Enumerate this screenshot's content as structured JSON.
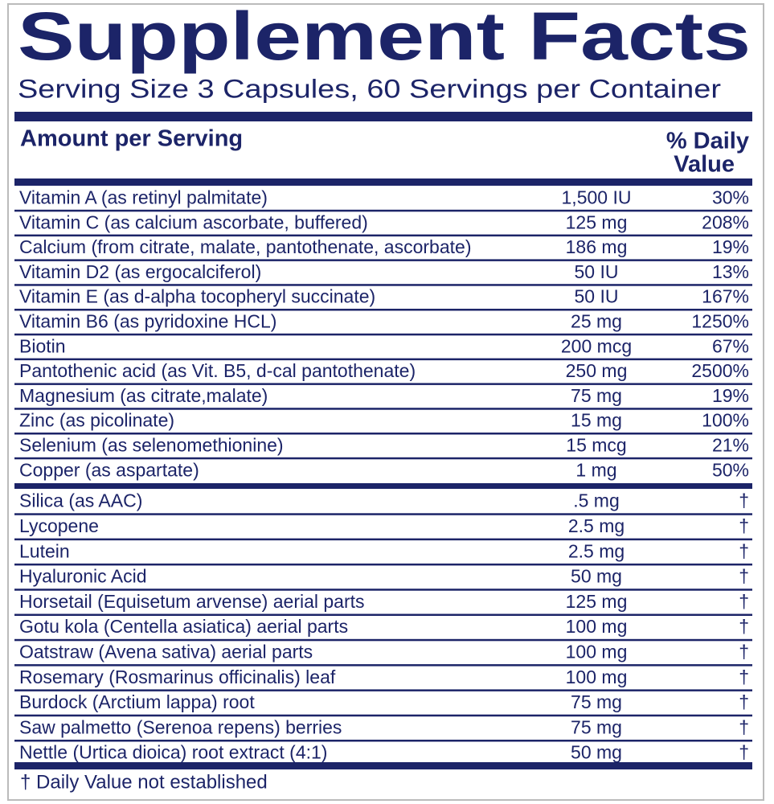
{
  "title": "Supplement Facts",
  "serving_size": "Serving Size 3 Capsules, 60 Servings per Container",
  "header": {
    "amount": "Amount per Serving",
    "daily_value": [
      "% Daily",
      "Value"
    ]
  },
  "groups": [
    [
      [
        "Vitamin A (as retinyl palmitate)",
        "1,500 IU",
        "30%"
      ],
      [
        "Vitamin C (as calcium ascorbate, buffered)",
        "125 mg",
        "208%"
      ],
      [
        "Calcium (from citrate, malate, pantothenate, ascorbate)",
        "186 mg",
        "19%"
      ],
      [
        "Vitamin D2 (as ergocalciferol)",
        "50 IU",
        "13%"
      ],
      [
        "Vitamin E (as d-alpha tocopheryl succinate)",
        "50 IU",
        "167%"
      ],
      [
        "Vitamin B6 (as pyridoxine HCL)",
        "25 mg",
        "1250%"
      ],
      [
        "Biotin",
        "200 mcg",
        "67%"
      ],
      [
        "Pantothenic acid (as Vit. B5, d-cal pantothenate)",
        "250 mg",
        "2500%"
      ],
      [
        "Magnesium (as citrate,malate)",
        "75 mg",
        "19%"
      ],
      [
        "Zinc (as picolinate)",
        "15 mg",
        "100%"
      ],
      [
        "Selenium (as selenomethionine)",
        "15 mcg",
        "21%"
      ],
      [
        "Copper (as aspartate)",
        "1 mg",
        "50%"
      ]
    ],
    [
      [
        "Silica (as AAC)",
        ".5 mg",
        "†"
      ],
      [
        "Lycopene",
        "2.5 mg",
        "†"
      ],
      [
        "Lutein",
        "2.5 mg",
        "†"
      ],
      [
        "Hyaluronic Acid",
        "50 mg",
        "†"
      ],
      [
        "Horsetail (Equisetum arvense) aerial parts",
        "125 mg",
        "†"
      ],
      [
        "Gotu kola (Centella asiatica) aerial parts",
        "100 mg",
        "†"
      ],
      [
        "Oatstraw (Avena sativa) aerial parts",
        "100 mg",
        "†"
      ],
      [
        "Rosemary (Rosmarinus officinalis) leaf",
        "100 mg",
        "†"
      ],
      [
        "Burdock (Arctium lappa) root",
        "75 mg",
        "†"
      ],
      [
        "Saw palmetto (Serenoa repens) berries",
        "75 mg",
        "†"
      ],
      [
        "Nettle (Urtica dioica) root extract (4:1)",
        "50 mg",
        "†"
      ]
    ]
  ],
  "footnote": "† Daily Value not established"
}
